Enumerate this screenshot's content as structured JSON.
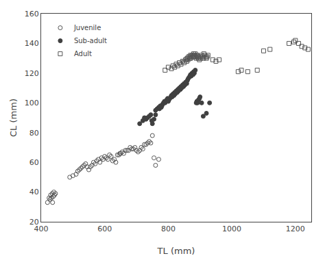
{
  "chart_data": {
    "type": "scatter",
    "xlabel": "TL (mm)",
    "ylabel": "CL (mm)",
    "series": [
      {
        "name": "Juvenile",
        "color": "#555555",
        "marker": "circle-open",
        "x": [
          420,
          425,
          428,
          430,
          432,
          435,
          436,
          438,
          440,
          442,
          445,
          490,
          500,
          510,
          515,
          520,
          525,
          530,
          535,
          540,
          545,
          550,
          555,
          560,
          565,
          570,
          575,
          580,
          585,
          590,
          595,
          600,
          605,
          610,
          615,
          620,
          625,
          630,
          635,
          640,
          645,
          648,
          650,
          655,
          660,
          665,
          670,
          675,
          680,
          685,
          690,
          695,
          700,
          705,
          710,
          715,
          720,
          725,
          730,
          735,
          740,
          745,
          750,
          755,
          760,
          770
        ],
        "values": [
          33,
          36,
          35,
          38,
          36,
          39,
          33,
          37,
          40,
          38,
          39,
          50,
          51,
          52,
          54,
          55,
          56,
          57,
          58,
          59,
          57,
          55,
          57,
          58,
          60,
          59,
          61,
          62,
          60,
          63,
          62,
          64,
          63,
          62,
          65,
          64,
          61,
          62,
          60,
          65,
          65,
          66,
          66,
          67,
          66,
          68,
          68,
          68,
          70,
          69,
          69,
          70,
          68,
          67,
          68,
          70,
          69,
          72,
          72,
          73,
          74,
          73,
          78,
          63,
          58,
          62
        ]
      },
      {
        "name": "Sub-adult",
        "color": "#404040",
        "marker": "circle",
        "x": [
          710,
          720,
          725,
          730,
          735,
          740,
          745,
          748,
          750,
          755,
          760,
          760,
          765,
          770,
          772,
          775,
          778,
          780,
          782,
          785,
          788,
          790,
          792,
          795,
          798,
          800,
          802,
          805,
          808,
          810,
          812,
          815,
          818,
          820,
          822,
          825,
          828,
          830,
          832,
          835,
          838,
          840,
          842,
          845,
          848,
          850,
          852,
          855,
          858,
          860,
          862,
          865,
          868,
          870,
          872,
          875,
          878,
          880,
          882,
          885,
          888,
          890,
          892,
          895,
          898,
          900,
          905,
          910,
          920,
          930
        ],
        "values": [
          86,
          88,
          90,
          89,
          90,
          91,
          92,
          88,
          86,
          89,
          92,
          95,
          96,
          97,
          96,
          98,
          97,
          98,
          99,
          100,
          101,
          100,
          101,
          102,
          103,
          101,
          102,
          103,
          104,
          105,
          104,
          106,
          105,
          107,
          106,
          108,
          107,
          109,
          108,
          110,
          109,
          111,
          110,
          112,
          111,
          113,
          112,
          114,
          113,
          115,
          116,
          117,
          118,
          119,
          118,
          120,
          119,
          121,
          120,
          122,
          100,
          101,
          100,
          102,
          103,
          104,
          100,
          91,
          93,
          100
        ]
      },
      {
        "name": "Adult",
        "color": "#555555",
        "marker": "square-open",
        "x": [
          790,
          800,
          810,
          815,
          820,
          825,
          830,
          835,
          840,
          845,
          850,
          855,
          858,
          860,
          862,
          865,
          868,
          870,
          872,
          875,
          878,
          880,
          882,
          885,
          888,
          890,
          892,
          895,
          898,
          900,
          902,
          905,
          908,
          910,
          912,
          915,
          918,
          920,
          922,
          925,
          850,
          855,
          860,
          865,
          870,
          875,
          880,
          885,
          890,
          895,
          940,
          950,
          960,
          1020,
          1030,
          1050,
          1080,
          1100,
          1120,
          1180,
          1195,
          1200,
          1210,
          1220,
          1230,
          1240
        ],
        "values": [
          122,
          124,
          123,
          125,
          124,
          126,
          125,
          127,
          126,
          128,
          127,
          129,
          128,
          130,
          129,
          131,
          130,
          132,
          131,
          132,
          131,
          133,
          132,
          131,
          130,
          132,
          131,
          130,
          129,
          131,
          130,
          132,
          131,
          130,
          133,
          132,
          131,
          130,
          131,
          132,
          128,
          129,
          130,
          131,
          130,
          132,
          131,
          133,
          132,
          131,
          129,
          128,
          129,
          121,
          122,
          121,
          122,
          135,
          136,
          140,
          141,
          142,
          140,
          138,
          137,
          136
        ]
      }
    ],
    "xlim": [
      400,
      1250
    ],
    "ylim": [
      20,
      160
    ],
    "xticks": [
      400,
      600,
      800,
      1000,
      1200
    ],
    "yticks": [
      20,
      40,
      60,
      80,
      100,
      120,
      140,
      160
    ],
    "grid": false,
    "legend": "upper left"
  }
}
